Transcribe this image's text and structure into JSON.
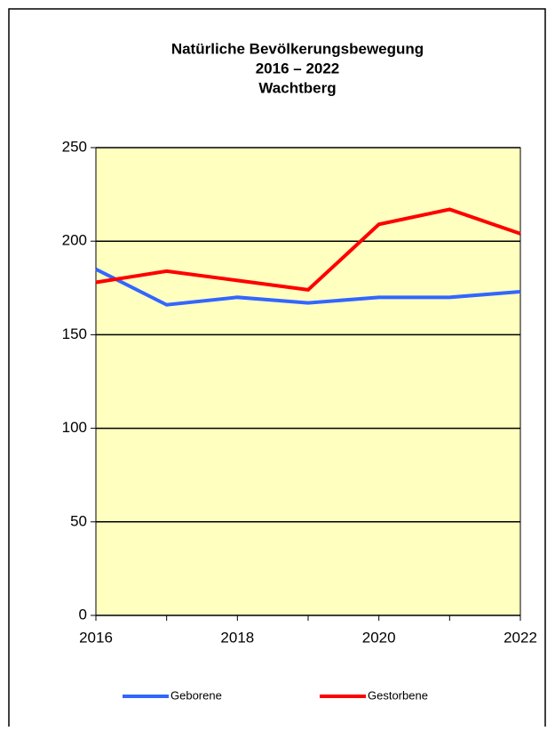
{
  "chart_data": {
    "type": "line",
    "title": [
      "Natürliche Bevölkerungsbewegung",
      "2016 – 2022",
      "Wachtberg"
    ],
    "x": [
      2016,
      2017,
      2018,
      2019,
      2020,
      2021,
      2022
    ],
    "series": [
      {
        "name": "Geborene",
        "color": "#3366ff",
        "values": [
          185,
          166,
          170,
          167,
          170,
          170,
          173
        ]
      },
      {
        "name": "Gestorbene",
        "color": "#ff0000",
        "values": [
          178,
          184,
          179,
          174,
          209,
          217,
          204
        ]
      }
    ],
    "xlim": [
      2016,
      2022
    ],
    "xticks": [
      2016,
      2018,
      2020,
      2022
    ],
    "ylim": [
      0,
      250
    ],
    "yticks": [
      0,
      50,
      100,
      150,
      200,
      250
    ],
    "grid": true,
    "legend": "bottom",
    "plot_background": "#ffffc0"
  }
}
